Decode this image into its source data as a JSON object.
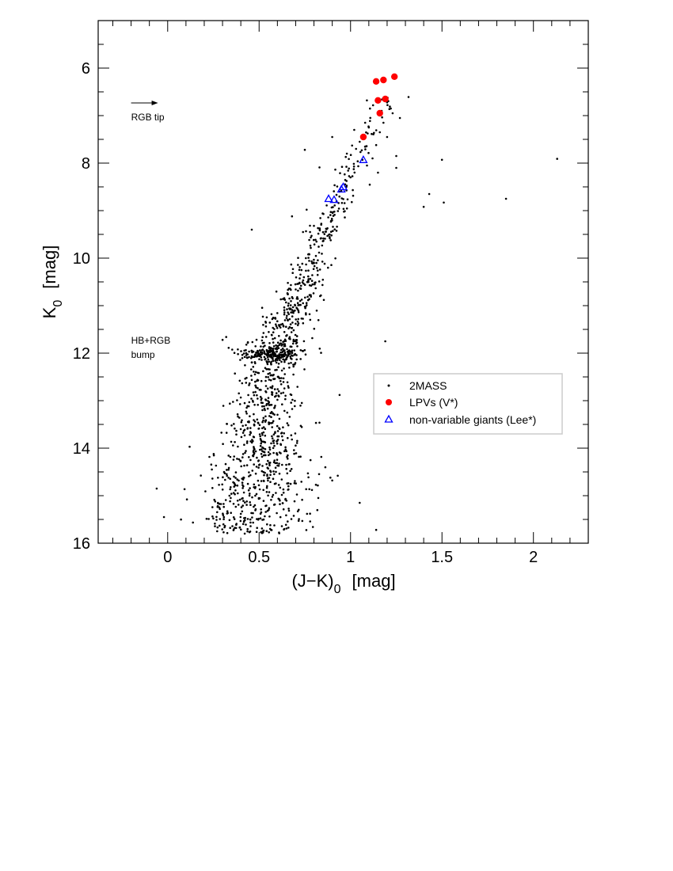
{
  "chart_data": {
    "type": "scatter",
    "xlabel": "(J−K)",
    "xlabel_sub": "0",
    "xlabel_unit": "[mag]",
    "ylabel": "K",
    "ylabel_sub": "0",
    "ylabel_unit": "[mag]",
    "xlim": [
      -0.38,
      2.3
    ],
    "ylim": [
      16,
      5.0
    ],
    "y_inverted": true,
    "x_ticks": [
      0,
      0.5,
      1,
      1.5,
      2
    ],
    "x_tick_labels": [
      "0",
      "0.5",
      "1",
      "1.5",
      "2"
    ],
    "x_minor_step": 0.1,
    "y_ticks": [
      6,
      8,
      10,
      12,
      14,
      16
    ],
    "y_tick_labels": [
      "6",
      "8",
      "10",
      "12",
      "14",
      "16"
    ],
    "y_minor_step": 0.5,
    "grid": false,
    "legend_position": "center-right",
    "annotations": [
      {
        "id": "rgb-tip",
        "lines": [
          "RGB tip"
        ],
        "x": -0.2,
        "y": 7.1,
        "arrow": true
      },
      {
        "id": "hb-rgb-bump",
        "lines": [
          "HB+RGB",
          "bump"
        ],
        "x": -0.2,
        "y": 11.8,
        "arrow": false
      }
    ],
    "series": [
      {
        "name": "2MASS",
        "marker": "dot",
        "color": "#000000",
        "ridge": [
          [
            15.6,
            0.46
          ],
          [
            15.0,
            0.47
          ],
          [
            14.5,
            0.49
          ],
          [
            14.0,
            0.51
          ],
          [
            13.5,
            0.52
          ],
          [
            13.0,
            0.54
          ],
          [
            12.5,
            0.56
          ],
          [
            12.0,
            0.58
          ],
          [
            11.5,
            0.63
          ],
          [
            11.0,
            0.69
          ],
          [
            10.5,
            0.74
          ],
          [
            10.0,
            0.79
          ],
          [
            9.5,
            0.85
          ],
          [
            9.0,
            0.91
          ],
          [
            8.5,
            0.96
          ],
          [
            8.0,
            1.02
          ],
          [
            7.5,
            1.07
          ],
          [
            7.0,
            1.13
          ],
          [
            6.7,
            1.18
          ]
        ],
        "ridge_sigma": [
          [
            15.6,
            0.16
          ],
          [
            14.5,
            0.14
          ],
          [
            13.5,
            0.1
          ],
          [
            12.5,
            0.08
          ],
          [
            11.5,
            0.07
          ],
          [
            10.5,
            0.055
          ],
          [
            9.5,
            0.045
          ],
          [
            8.5,
            0.04
          ],
          [
            7.5,
            0.04
          ],
          [
            6.7,
            0.05
          ]
        ],
        "ridge_counts": [
          [
            15.8,
            14.5,
            300
          ],
          [
            14.5,
            13.0,
            300
          ],
          [
            13.0,
            11.8,
            200
          ],
          [
            11.8,
            10.5,
            200
          ],
          [
            10.5,
            9.0,
            120
          ],
          [
            9.0,
            7.8,
            50
          ],
          [
            7.8,
            6.6,
            30
          ]
        ],
        "clump": {
          "x": 0.55,
          "y": 12.0,
          "sx": 0.09,
          "sy": 0.07,
          "n": 130
        },
        "clump_extra": {
          "x": 0.62,
          "y": 12.08,
          "sx": 0.05,
          "sy": 0.04,
          "n": 40
        },
        "points": [
          {
            "x": -0.06,
            "y": 14.85
          },
          {
            "x": -0.02,
            "y": 15.45
          },
          {
            "x": 0.12,
            "y": 13.97
          },
          {
            "x": 0.3,
            "y": 11.72
          },
          {
            "x": 0.32,
            "y": 11.66
          },
          {
            "x": 0.46,
            "y": 9.4
          },
          {
            "x": 0.76,
            "y": 8.98
          },
          {
            "x": 0.68,
            "y": 9.12
          },
          {
            "x": 0.8,
            "y": 9.32
          },
          {
            "x": 0.83,
            "y": 8.09
          },
          {
            "x": 0.74,
            "y": 9.45
          },
          {
            "x": 0.89,
            "y": 14.62
          },
          {
            "x": 0.93,
            "y": 14.58
          },
          {
            "x": 0.9,
            "y": 14.68
          },
          {
            "x": 1.05,
            "y": 15.15
          },
          {
            "x": 1.14,
            "y": 15.72
          },
          {
            "x": 1.19,
            "y": 11.75
          },
          {
            "x": 0.94,
            "y": 12.88
          },
          {
            "x": 0.75,
            "y": 7.72
          },
          {
            "x": 1.4,
            "y": 8.92
          },
          {
            "x": 1.43,
            "y": 8.65
          },
          {
            "x": 1.5,
            "y": 7.93
          },
          {
            "x": 1.51,
            "y": 8.83
          },
          {
            "x": 1.85,
            "y": 8.75
          },
          {
            "x": 2.13,
            "y": 7.91
          },
          {
            "x": 1.25,
            "y": 7.85
          },
          {
            "x": 1.25,
            "y": 8.1
          },
          {
            "x": 1.22,
            "y": 6.85
          },
          {
            "x": 1.2,
            "y": 6.72
          },
          {
            "x": 1.27,
            "y": 7.05
          },
          {
            "x": 1.18,
            "y": 7.15
          },
          {
            "x": 1.16,
            "y": 7.35
          },
          {
            "x": 1.1,
            "y": 7.25
          },
          {
            "x": 1.14,
            "y": 7.62
          },
          {
            "x": 1.12,
            "y": 7.9
          },
          {
            "x": 1.15,
            "y": 8.2
          },
          {
            "x": 1.05,
            "y": 7.55
          },
          {
            "x": 1.03,
            "y": 7.7
          },
          {
            "x": 0.98,
            "y": 7.8
          },
          {
            "x": 1.09,
            "y": 8.05
          },
          {
            "x": 1.0,
            "y": 8.3
          },
          {
            "x": 1.23,
            "y": 6.95
          },
          {
            "x": 1.2,
            "y": 7.45
          },
          {
            "x": 1.17,
            "y": 6.9
          },
          {
            "x": 1.08,
            "y": 7.15
          },
          {
            "x": 0.9,
            "y": 7.45
          },
          {
            "x": 1.02,
            "y": 7.3
          }
        ]
      },
      {
        "name": "LPVs (V*)",
        "marker": "filled-circle",
        "color": "#ff0000",
        "points": [
          {
            "x": 1.14,
            "y": 6.28
          },
          {
            "x": 1.18,
            "y": 6.25
          },
          {
            "x": 1.24,
            "y": 6.18
          },
          {
            "x": 1.15,
            "y": 6.68
          },
          {
            "x": 1.19,
            "y": 6.65
          },
          {
            "x": 1.16,
            "y": 6.95
          },
          {
            "x": 1.07,
            "y": 7.45
          }
        ]
      },
      {
        "name": "non-variable giants (Lee*)",
        "marker": "open-triangle",
        "color": "#0000ff",
        "points": [
          {
            "x": 1.07,
            "y": 7.93
          },
          {
            "x": 0.96,
            "y": 8.5
          },
          {
            "x": 0.95,
            "y": 8.55
          },
          {
            "x": 0.88,
            "y": 8.75
          },
          {
            "x": 0.91,
            "y": 8.77
          }
        ]
      }
    ]
  }
}
